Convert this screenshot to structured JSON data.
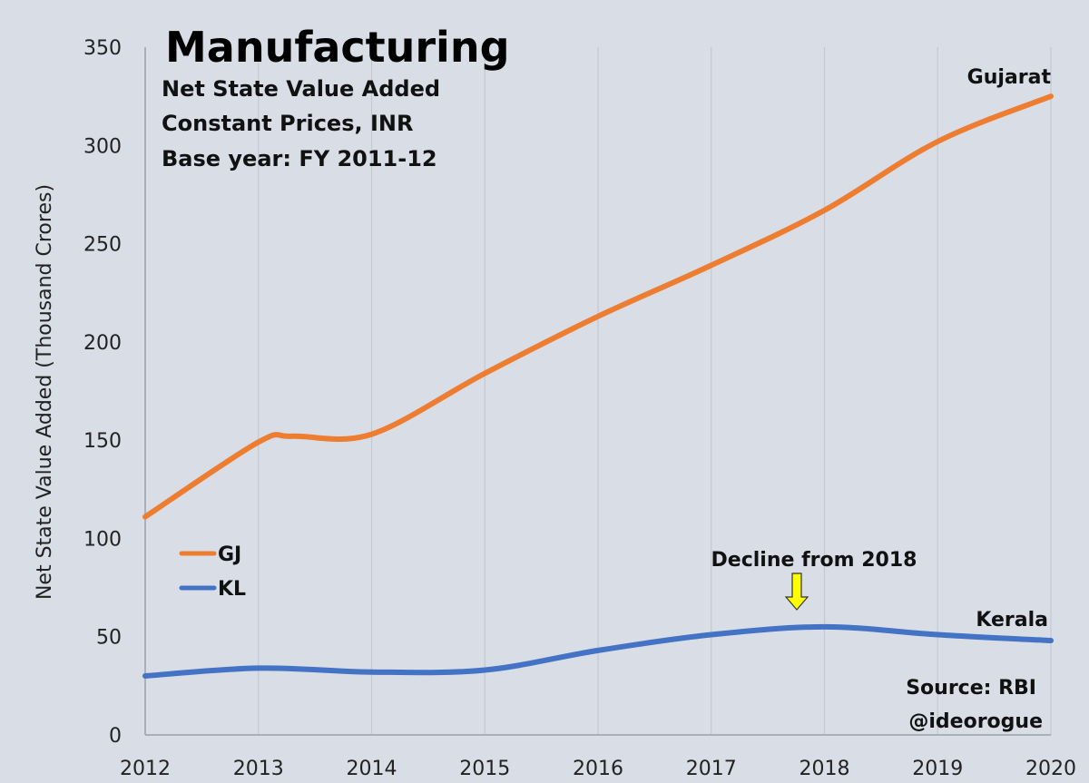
{
  "chart_data": {
    "type": "line",
    "title": "Manufacturing",
    "subtitle_lines": [
      "Net State Value Added",
      "Constant Prices, INR",
      "Base year: FY 2011-12"
    ],
    "xlabel": "",
    "ylabel": "Net State Value Added (Thousand Crores)",
    "x": [
      2012,
      2013,
      2014,
      2015,
      2016,
      2017,
      2018,
      2019,
      2020
    ],
    "x_tick_labels": [
      "2012",
      "2013",
      "2014",
      "2015",
      "2016",
      "2017",
      "2018",
      "2019",
      "2020"
    ],
    "y_ticks": [
      0,
      50,
      100,
      150,
      200,
      250,
      300,
      350
    ],
    "y_tick_labels": [
      "0",
      "50",
      "100",
      "150",
      "200",
      "250",
      "300",
      "350"
    ],
    "xlim": [
      2012,
      2020
    ],
    "ylim": [
      0,
      350
    ],
    "grid": "vertical",
    "legend_position": "left",
    "series": [
      {
        "name": "GJ",
        "label": "Gujarat",
        "color": "#ed7d31",
        "x": [
          2012,
          2013,
          2013.3,
          2014,
          2015,
          2016,
          2017,
          2018,
          2019,
          2020
        ],
        "values": [
          111,
          149,
          152,
          153,
          184,
          213,
          239,
          267,
          302,
          325
        ]
      },
      {
        "name": "KL",
        "label": "Kerala",
        "color": "#4472c4",
        "x": [
          2012,
          2013,
          2014,
          2015,
          2016,
          2017,
          2018,
          2019,
          2020
        ],
        "values": [
          30,
          34,
          32,
          33,
          43,
          51,
          55,
          51,
          48
        ]
      }
    ],
    "annotations": {
      "decline": {
        "text": "Decline from 2018",
        "arrow_color": "#ffff00",
        "at_x": 2017.8
      },
      "source": "Source: RBI",
      "handle": "@ideorogue"
    }
  }
}
